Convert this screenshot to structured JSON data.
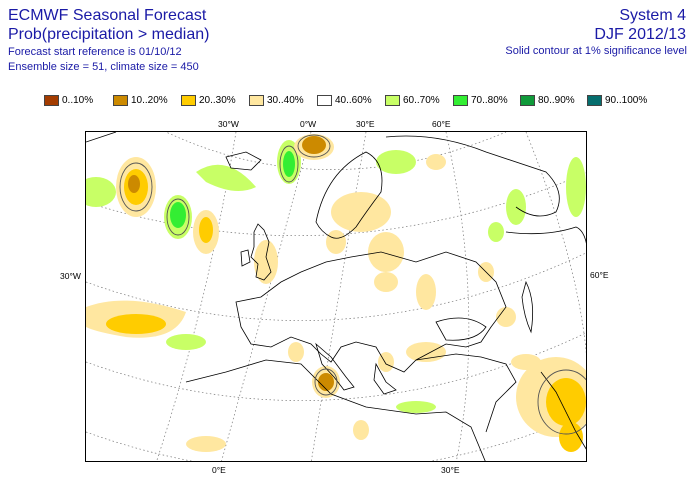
{
  "header": {
    "title": "ECMWF Seasonal Forecast",
    "subtitle": "Prob(precipitation > median)",
    "start_ref": "Forecast start reference is 01/10/12",
    "ensemble": "Ensemble size = 51, climate size = 450",
    "system": "System 4",
    "season": "DJF 2012/13",
    "significance": "Solid contour at 1% significance level"
  },
  "legend": [
    {
      "label": "0..10%",
      "color": "#a33c00"
    },
    {
      "label": "10..20%",
      "color": "#cc8a00"
    },
    {
      "label": "20..30%",
      "color": "#ffcc00"
    },
    {
      "label": "30..40%",
      "color": "#ffe7a0"
    },
    {
      "label": "40..60%",
      "color": "#ffffff"
    },
    {
      "label": "60..70%",
      "color": "#c8ff66"
    },
    {
      "label": "70..80%",
      "color": "#33ee33"
    },
    {
      "label": "80..90%",
      "color": "#109a3a"
    },
    {
      "label": "90..100%",
      "color": "#066e6e"
    }
  ],
  "axes": {
    "lon_30w_top": "30°W",
    "lon_0_top": "0°W",
    "lon_30e_top": "30°E",
    "lon_60e_top": "60°E",
    "lon_30w_left": "30°W",
    "lon_60e_right": "60°E",
    "lon_0_bottom": "0°E",
    "lon_30e_bottom": "30°E"
  }
}
